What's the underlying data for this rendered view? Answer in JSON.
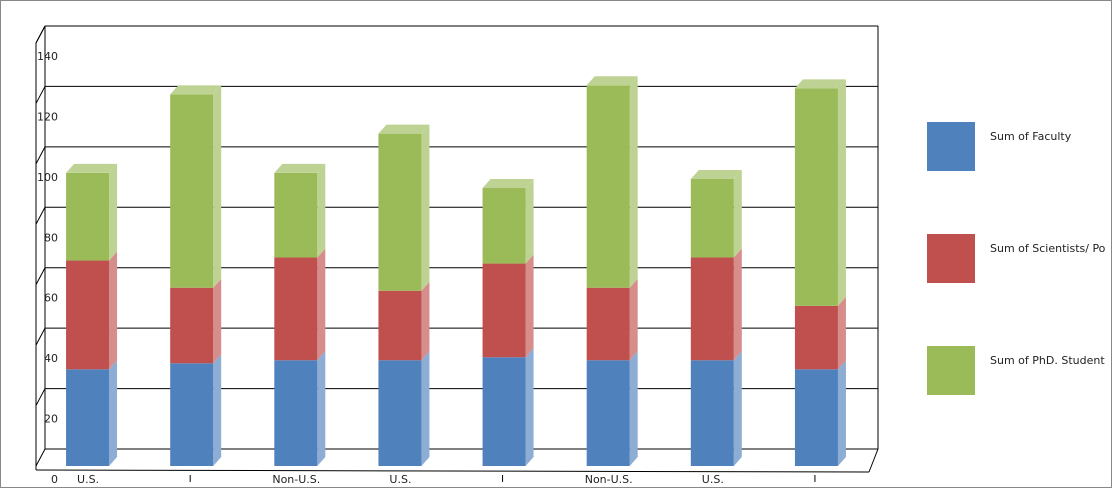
{
  "chart_data": {
    "type": "bar",
    "stacked": true,
    "categories": [
      "U.S.",
      null,
      "Non-U.S.",
      "U.S.",
      null,
      "Non-U.S.",
      "U.S.",
      null
    ],
    "series": [
      {
        "name": "Sum of  Faculty",
        "color": "#4f81bd",
        "values": [
          32,
          34,
          35,
          35,
          36,
          35,
          35,
          32
        ]
      },
      {
        "name": "Sum of  Scientists/ Po",
        "color": "#c0504d",
        "values": [
          36,
          25,
          34,
          23,
          31,
          24,
          34,
          21
        ]
      },
      {
        "name": "Sum of  PhD. Student",
        "color": "#9bbb59",
        "values": [
          29,
          64,
          28,
          52,
          25,
          67,
          26,
          72
        ]
      }
    ],
    "ylim": [
      0,
      140
    ],
    "yticks": [
      0,
      20,
      40,
      60,
      80,
      100,
      120,
      140
    ],
    "grid": true,
    "legend": "right"
  }
}
